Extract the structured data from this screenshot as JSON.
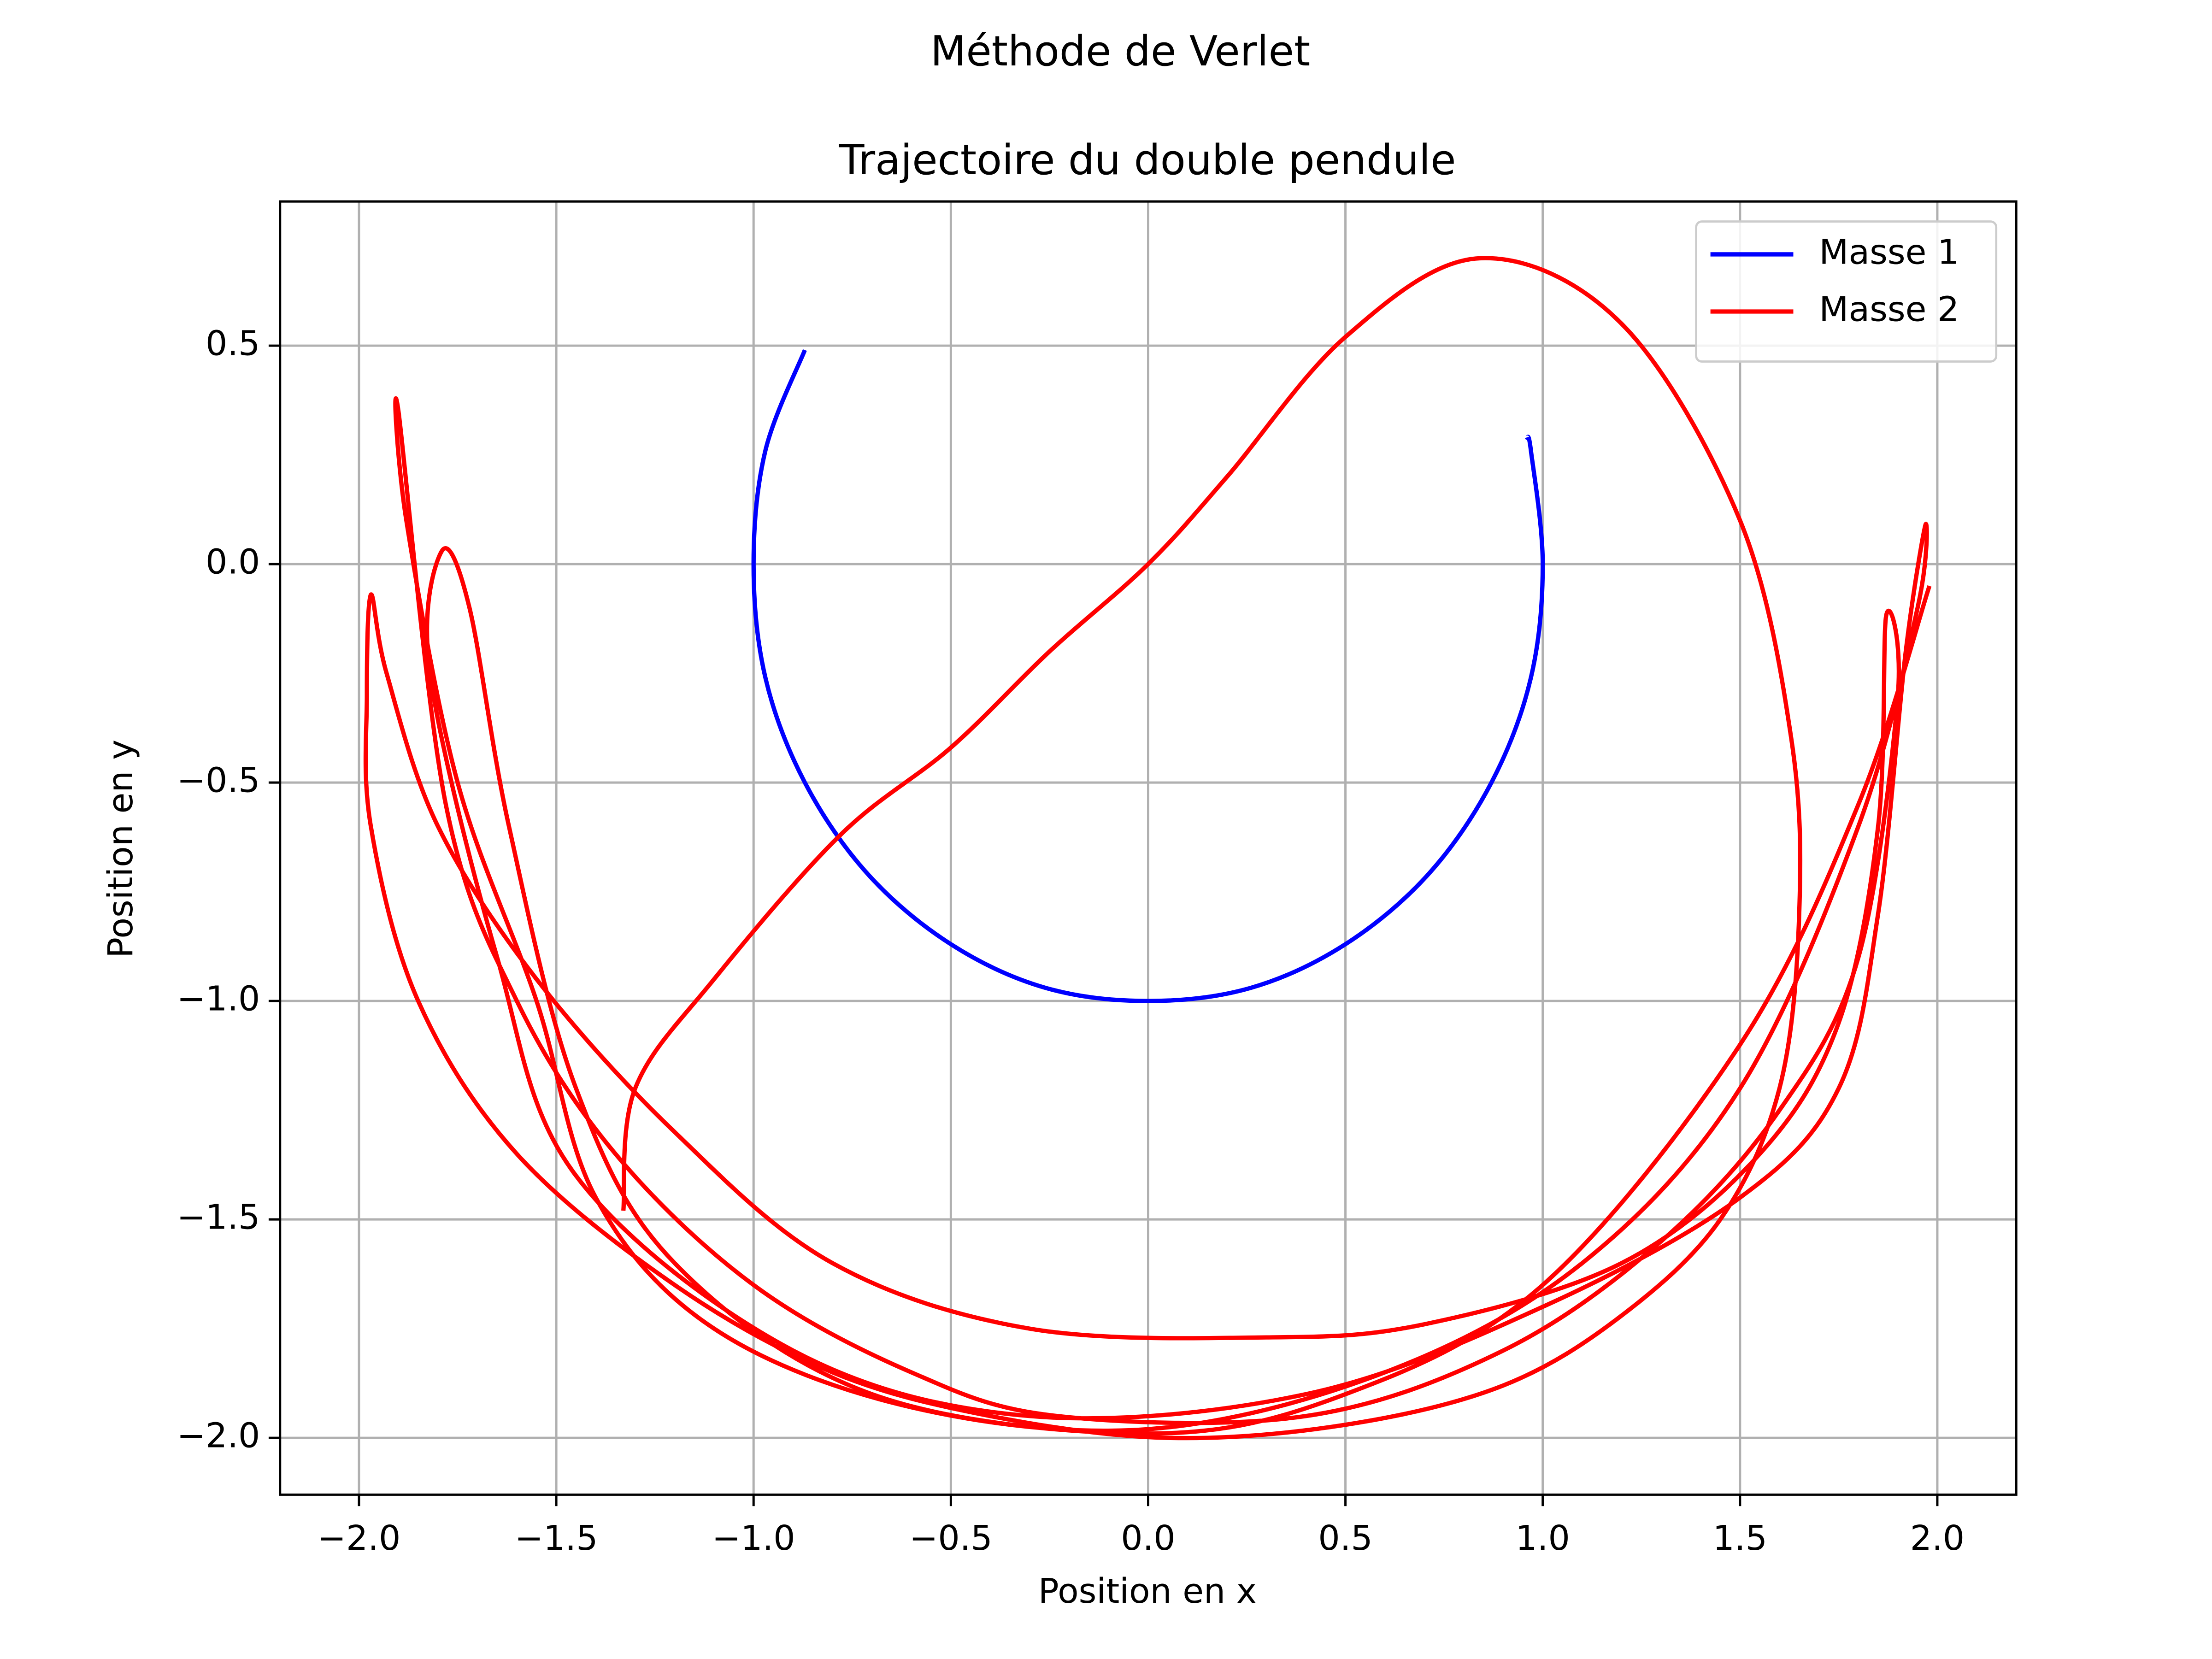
{
  "chart_data": {
    "type": "line",
    "suptitle": "Méthode de Verlet",
    "title": "Trajectoire du double pendule",
    "xlabel": "Position en x",
    "ylabel": "Position en y",
    "xlim": [
      -2.2,
      2.2
    ],
    "ylim": [
      -2.13,
      0.83
    ],
    "xticks": [
      {
        "value": -2,
        "label": "−2.0"
      },
      {
        "value": -1.5,
        "label": "−1.5"
      },
      {
        "value": -1,
        "label": "−1.0"
      },
      {
        "value": -0.5,
        "label": "−0.5"
      },
      {
        "value": 0,
        "label": "0.0"
      },
      0.5,
      {
        "value": 1,
        "label": "1.0"
      },
      1.5,
      {
        "value": 2,
        "label": "2.0"
      }
    ],
    "yticks": [
      {
        "value": -2,
        "label": "−2.0"
      },
      {
        "value": -1.5,
        "label": "−1.5"
      },
      {
        "value": -1,
        "label": "−1.0"
      },
      {
        "value": -0.5,
        "label": "−0.5"
      },
      {
        "value": 0,
        "label": "0.0"
      },
      0.5
    ],
    "grid": true,
    "legend": "upper right",
    "series": [
      {
        "name": "Masse 1",
        "color": "#0000ff",
        "x": [
          -0.87,
          -0.97,
          -1,
          -0.97,
          -0.87,
          -0.71,
          -0.5,
          -0.26,
          0,
          0.26,
          0.5,
          0.71,
          0.87,
          0.97,
          1,
          0.97,
          0.96
        ],
        "values": [
          0.49,
          0.26,
          0,
          -0.26,
          -0.5,
          -0.71,
          -0.87,
          -0.97,
          -1,
          -0.97,
          -0.87,
          -0.71,
          -0.5,
          -0.26,
          0,
          0.26,
          0.29
        ]
      },
      {
        "name": "Masse 2",
        "color": "#ff0000",
        "x": [
          -1.33,
          -1.3,
          -1.1,
          -0.78,
          -0.5,
          -0.25,
          0,
          0.2,
          0.5,
          0.84,
          1.2,
          1.5,
          1.63,
          1.65,
          1.6,
          1.45,
          1.2,
          0.9,
          0.5,
          0.05,
          -0.4,
          -0.8,
          -1.2,
          -1.6,
          -1.85,
          -1.97,
          -1.98,
          -1.97,
          -1.93,
          -1.8,
          -1.55,
          -1.2,
          -0.8,
          -0.3,
          0.3,
          0.7,
          1.2,
          1.55,
          1.75,
          1.85,
          1.87,
          1.9,
          1.8,
          1.6,
          1.3,
          0.9,
          0.4,
          -0.23,
          -0.6,
          -1.0,
          -1.35,
          -1.6,
          -1.78,
          -1.9,
          -1.88,
          -1.75,
          -1.55,
          -1.4,
          -1.1,
          -0.6,
          0,
          0.6,
          1.1,
          1.5,
          1.8,
          1.95,
          1.97,
          1.92,
          1.85,
          1.75,
          1.5,
          1.0,
          0.4,
          -0.3,
          -0.9,
          -1.45,
          -1.65,
          -1.82,
          -1.79,
          -1.72,
          -1.62,
          -1.45,
          -1.2,
          -0.7,
          0,
          0.5,
          1.0,
          1.5,
          1.8,
          1.98
        ],
        "values": [
          -1.48,
          -1.2,
          -0.95,
          -0.62,
          -0.42,
          -0.2,
          0,
          0.2,
          0.52,
          0.7,
          0.55,
          0.1,
          -0.4,
          -0.8,
          -1.2,
          -1.5,
          -1.72,
          -1.88,
          -1.97,
          -2.0,
          -1.95,
          -1.85,
          -1.65,
          -1.35,
          -1.0,
          -0.6,
          -0.3,
          -0.07,
          -0.25,
          -0.6,
          -0.95,
          -1.3,
          -1.6,
          -1.75,
          -1.77,
          -1.74,
          -1.6,
          -1.35,
          -1.05,
          -0.6,
          -0.12,
          -0.3,
          -0.9,
          -1.25,
          -1.55,
          -1.8,
          -1.95,
          -1.95,
          -1.85,
          -1.65,
          -1.35,
          -1.0,
          -0.55,
          0.35,
          0.1,
          -0.5,
          -1.0,
          -1.45,
          -1.75,
          -1.93,
          -1.98,
          -1.85,
          -1.6,
          -1.2,
          -0.6,
          -0.1,
          0.09,
          -0.2,
          -0.8,
          -1.2,
          -1.45,
          -1.7,
          -1.9,
          -1.95,
          -1.8,
          -1.4,
          -0.9,
          -0.25,
          0.03,
          -0.1,
          -0.6,
          -1.2,
          -1.6,
          -1.9,
          -1.99,
          -1.9,
          -1.65,
          -1.1,
          -0.55,
          -0.05
        ]
      }
    ]
  }
}
